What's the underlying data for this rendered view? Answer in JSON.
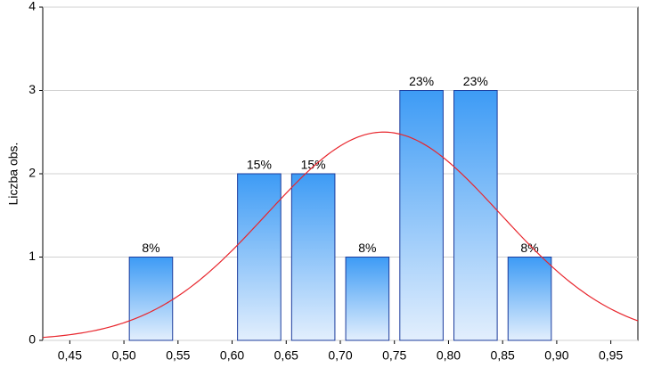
{
  "chart_data": {
    "type": "histogram",
    "ylabel": "Liczba obs.",
    "bins": [
      0.5,
      0.55,
      0.6,
      0.65,
      0.7,
      0.75,
      0.8,
      0.85,
      0.9
    ],
    "values": [
      1,
      0,
      2,
      2,
      1,
      3,
      3,
      1
    ],
    "bar_labels": [
      "8%",
      null,
      "15%",
      "15%",
      "8%",
      "23%",
      "23%",
      "8%"
    ],
    "color": "#3d9bf5",
    "xlim": [
      0.425,
      0.975
    ],
    "xticks": [
      {
        "value": 0.45,
        "label": "0,45"
      },
      {
        "value": 0.5,
        "label": "0,50"
      },
      {
        "value": 0.55,
        "label": "0,55"
      },
      {
        "value": 0.6,
        "label": "0,60"
      },
      {
        "value": 0.65,
        "label": "0,65"
      },
      {
        "value": 0.7,
        "label": "0,70"
      },
      {
        "value": 0.75,
        "label": "0,75"
      },
      {
        "value": 0.8,
        "label": "0,80"
      },
      {
        "value": 0.85,
        "label": "0,85"
      },
      {
        "value": 0.9,
        "label": "0,90"
      },
      {
        "value": 0.95,
        "label": "0,95"
      }
    ],
    "ylim": [
      0,
      4
    ],
    "yticks": [
      0,
      1,
      2,
      3,
      4
    ],
    "grid": true,
    "normal_fit": {
      "mean": 0.74,
      "sd": 0.108,
      "peak": 2.5,
      "color": "#e8262d"
    }
  }
}
